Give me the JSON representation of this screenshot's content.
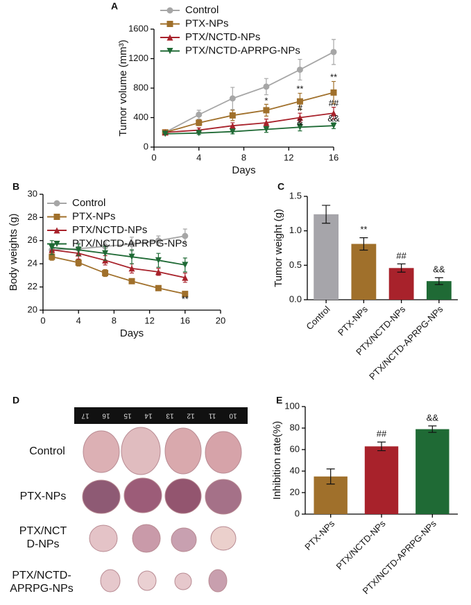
{
  "chart_data": [
    {
      "panel": "A",
      "type": "line",
      "x": [
        1,
        4,
        7,
        10,
        13,
        16
      ],
      "xlabel": "Days",
      "ylabel": "Tumor volume (mm³)",
      "xlim": [
        0,
        16
      ],
      "xticks": [
        0,
        4,
        8,
        12,
        16
      ],
      "ylim": [
        0,
        1600
      ],
      "yticks": [
        0,
        400,
        800,
        1200,
        1600
      ],
      "series": [
        {
          "name": "Control",
          "color": "#a6a6a6",
          "marker": "circle",
          "values": [
            200,
            440,
            660,
            820,
            1050,
            1290
          ],
          "errors": [
            0,
            60,
            150,
            110,
            140,
            170
          ]
        },
        {
          "name": "PTX-NPs",
          "color": "#a0702b",
          "marker": "square",
          "values": [
            200,
            330,
            430,
            500,
            620,
            740
          ],
          "errors": [
            0,
            40,
            70,
            80,
            110,
            150
          ]
        },
        {
          "name": "PTX/NCTD-NPs",
          "color": "#a8222b",
          "marker": "triangle-up",
          "values": [
            200,
            230,
            290,
            330,
            400,
            460
          ],
          "errors": [
            0,
            30,
            40,
            50,
            60,
            80
          ]
        },
        {
          "name": "PTX/NCTD-APRPG-NPs",
          "color": "#1f6a35",
          "marker": "triangle-down",
          "values": [
            180,
            190,
            210,
            240,
            270,
            290
          ],
          "errors": [
            0,
            20,
            30,
            40,
            50,
            40
          ]
        }
      ],
      "annotations": [
        {
          "text": "*",
          "x": 10,
          "y": 620
        },
        {
          "text": "**",
          "x": 13,
          "y": 780
        },
        {
          "text": "**",
          "x": 16,
          "y": 940
        },
        {
          "text": "#",
          "x": 13,
          "y": 520
        },
        {
          "text": "##",
          "x": 16,
          "y": 590
        },
        {
          "text": "&",
          "x": 13,
          "y": 330
        },
        {
          "text": "&&",
          "x": 16,
          "y": 380
        }
      ]
    },
    {
      "panel": "B",
      "type": "line",
      "x": [
        1,
        4,
        7,
        10,
        13,
        16
      ],
      "xlabel": "Days",
      "ylabel": "Body weights (g)",
      "xlim": [
        0,
        20
      ],
      "xticks": [
        0,
        4,
        8,
        12,
        16,
        20
      ],
      "ylim": [
        20,
        30
      ],
      "yticks": [
        20,
        22,
        24,
        26,
        28,
        30
      ],
      "series": [
        {
          "name": "Control",
          "color": "#a6a6a6",
          "marker": "circle",
          "values": [
            25.2,
            25.3,
            25.5,
            25.7,
            26.0,
            26.4
          ],
          "errors": [
            0.4,
            0.5,
            0.4,
            0.6,
            0.4,
            0.6
          ]
        },
        {
          "name": "PTX-NPs",
          "color": "#a0702b",
          "marker": "square",
          "values": [
            24.6,
            24.1,
            23.2,
            22.5,
            21.9,
            21.4
          ],
          "errors": [
            0.3,
            0.3,
            0.3,
            0.2,
            0.1,
            0.1
          ]
        },
        {
          "name": "PTX/NCTD-NPs",
          "color": "#a8222b",
          "marker": "triangle-up",
          "values": [
            25.2,
            24.9,
            24.3,
            23.6,
            23.3,
            22.8
          ],
          "errors": [
            0.4,
            0.5,
            0.4,
            0.4,
            0.3,
            0.4
          ]
        },
        {
          "name": "PTX/NCTD-APRPG-NPs",
          "color": "#1f6a35",
          "marker": "triangle-down",
          "values": [
            25.4,
            25.2,
            24.9,
            24.6,
            24.3,
            23.9
          ],
          "errors": [
            0.6,
            0.5,
            0.6,
            0.6,
            0.6,
            0.6
          ]
        }
      ],
      "annotations": [
        {
          "text": "**",
          "x": 16,
          "y": 20.9
        }
      ]
    },
    {
      "panel": "C",
      "type": "bar",
      "ylabel": "Tumor weight (g)",
      "categories": [
        "Control",
        "PTX-NPs",
        "PTX/NCTD-NPs",
        "PTX/NCTD-APRPG-NPs"
      ],
      "values": [
        1.24,
        0.81,
        0.46,
        0.27
      ],
      "errors": [
        0.13,
        0.09,
        0.06,
        0.05
      ],
      "colors": [
        "#a6a5aa",
        "#a0702b",
        "#a8222b",
        "#1f6a35"
      ],
      "marks": [
        null,
        "**",
        "##",
        "&&"
      ],
      "ylim": [
        0,
        1.5
      ],
      "yticks": [
        {
          "value": 0,
          "label": "0.0"
        },
        0.5,
        {
          "value": 1,
          "label": "1.0"
        },
        1.5
      ]
    },
    {
      "panel": "E",
      "type": "bar",
      "ylabel": "Inhibition rate(%)",
      "categories": [
        "PTX-NPs",
        "PTX/NCTD-NPs",
        "PTX/NCTD-APRPG-NPs"
      ],
      "values": [
        35,
        63,
        79
      ],
      "errors": [
        7,
        4,
        3
      ],
      "colors": [
        "#a0702b",
        "#a8222b",
        "#1f6a35"
      ],
      "marks": [
        null,
        "##",
        "&&"
      ],
      "ylim": [
        0,
        100
      ],
      "yticks": [
        0,
        20,
        40,
        60,
        80,
        100
      ]
    }
  ],
  "photo": {
    "panel": "D",
    "row_labels": [
      [
        "Control"
      ],
      [
        "PTX-NPs"
      ],
      [
        "PTX/NCT",
        "D-NPs"
      ],
      [
        "PTX/NCTD-",
        "APRPG-NPs"
      ]
    ],
    "ruler_labels": [
      "17",
      "16",
      "15",
      "14",
      "13",
      "12",
      "11",
      "10"
    ]
  }
}
